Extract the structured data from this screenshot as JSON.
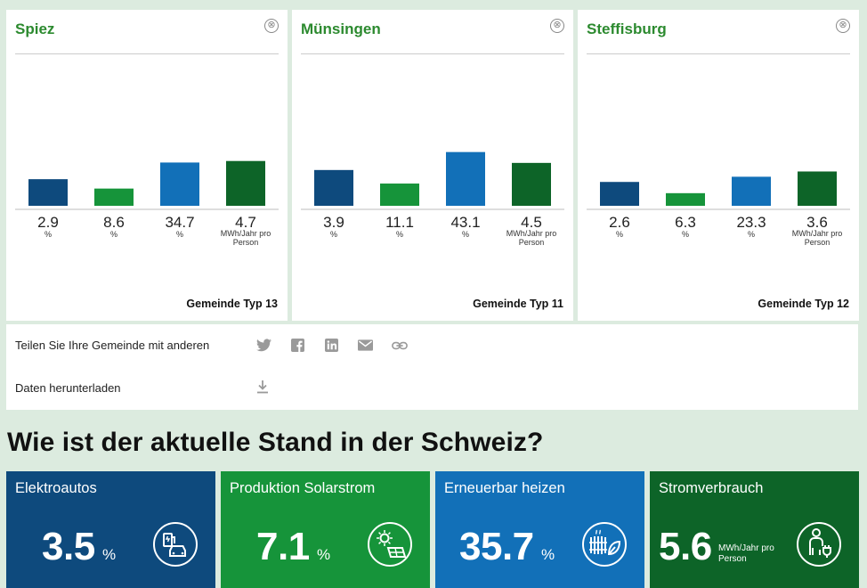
{
  "cards": [
    {
      "title": "Spiez",
      "close_symbol": "⊗",
      "footer": "Gemeinde Typ 13",
      "bars": [
        {
          "value": "2.9",
          "unit": "%"
        },
        {
          "value": "8.6",
          "unit": "%"
        },
        {
          "value": "34.7",
          "unit": "%"
        },
        {
          "value": "4.7",
          "unit": "MWh/Jahr pro Person"
        }
      ]
    },
    {
      "title": "Münsingen",
      "close_symbol": "⊗",
      "footer": "Gemeinde Typ 11",
      "bars": [
        {
          "value": "3.9",
          "unit": "%"
        },
        {
          "value": "11.1",
          "unit": "%"
        },
        {
          "value": "43.1",
          "unit": "%"
        },
        {
          "value": "4.5",
          "unit": "MWh/Jahr pro Person"
        }
      ]
    },
    {
      "title": "Steffisburg",
      "close_symbol": "⊗",
      "footer": "Gemeinde Typ 12",
      "bars": [
        {
          "value": "2.6",
          "unit": "%"
        },
        {
          "value": "6.3",
          "unit": "%"
        },
        {
          "value": "23.3",
          "unit": "%"
        },
        {
          "value": "3.6",
          "unit": "MWh/Jahr pro Person"
        }
      ]
    }
  ],
  "bar_colors": [
    "#0e4a7d",
    "#16943a",
    "#1270b8",
    "#0d6428"
  ],
  "share": {
    "label": "Teilen Sie Ihre Gemeinde mit anderen",
    "icons": [
      "twitter-icon",
      "facebook-icon",
      "linkedin-icon",
      "mail-icon",
      "link-icon"
    ],
    "download_label": "Daten herunterladen",
    "download_icon": "download-icon"
  },
  "section_heading": "Wie ist der aktuelle Stand in der Schweiz?",
  "kpis": [
    {
      "label": "Elektroautos",
      "value": "3.5",
      "unit": "%",
      "color": "#0e4a7d",
      "icon": "ev-charging-icon"
    },
    {
      "label": "Produktion Solarstrom",
      "value": "7.1",
      "unit": "%",
      "color": "#16943a",
      "icon": "solar-panel-icon"
    },
    {
      "label": "Erneuerbar heizen",
      "value": "35.7",
      "unit": "%",
      "color": "#1270b8",
      "icon": "radiator-leaf-icon"
    },
    {
      "label": "Stromverbrauch",
      "value": "5.6",
      "unit": "MWh/Jahr pro Person",
      "color": "#0d6428",
      "icon": "person-plug-icon"
    }
  ]
}
